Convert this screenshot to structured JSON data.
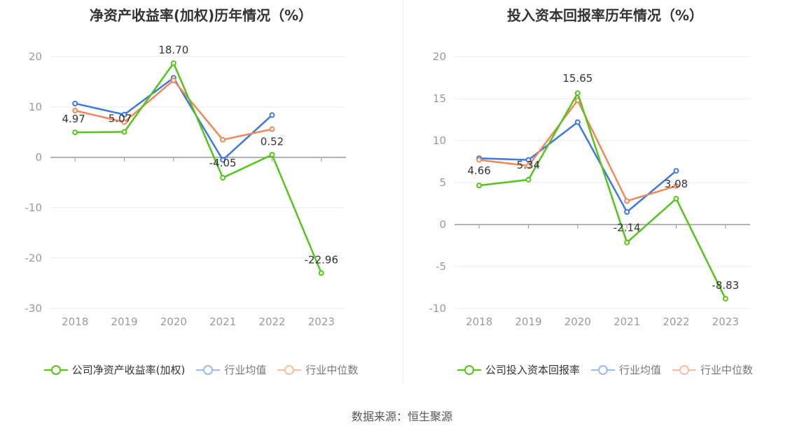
{
  "source": "数据来源：恒生聚源",
  "chart_data": [
    {
      "type": "line",
      "title": "净资产收益率(加权)历年情况（%）",
      "categories": [
        "2018",
        "2019",
        "2020",
        "2021",
        "2022",
        "2023"
      ],
      "ylim": [
        -30,
        20
      ],
      "yticks": [
        20,
        10,
        0,
        -10,
        -20,
        -30
      ],
      "ytick_labels": [
        "20",
        "10",
        "0",
        "-10",
        "-20",
        "-30"
      ],
      "grid": true,
      "legend_position": "bottom",
      "series": [
        {
          "name": "公司净资产收益率(加权)",
          "color": "#52c41a",
          "values": [
            4.97,
            5.07,
            18.7,
            -4.05,
            0.52,
            -22.96
          ],
          "labels": [
            "4.97",
            "5.07",
            "18.70",
            "-4.05",
            "0.52",
            "-22.96"
          ]
        },
        {
          "name": "行业均值",
          "color": "#3e77e0",
          "values": [
            10.7,
            8.5,
            15.8,
            -0.5,
            8.4,
            null
          ]
        },
        {
          "name": "行业中位数",
          "color": "#f0875a",
          "values": [
            9.3,
            7.0,
            15.3,
            3.5,
            5.6,
            null
          ]
        }
      ]
    },
    {
      "type": "line",
      "title": "投入资本回报率历年情况（%）",
      "categories": [
        "2018",
        "2019",
        "2020",
        "2021",
        "2022",
        "2023"
      ],
      "ylim": [
        -10,
        20
      ],
      "yticks": [
        20,
        15,
        10,
        5,
        0,
        -5,
        -10
      ],
      "ytick_labels": [
        "20",
        "15",
        "10",
        "5",
        "0",
        "-5",
        "-10"
      ],
      "grid": true,
      "legend_position": "bottom",
      "series": [
        {
          "name": "公司投入资本回报率",
          "color": "#52c41a",
          "values": [
            4.66,
            5.34,
            15.65,
            -2.14,
            3.08,
            -8.83
          ],
          "labels": [
            "4.66",
            "5.34",
            "15.65",
            "-2.14",
            "3.08",
            "-8.83"
          ]
        },
        {
          "name": "行业均值",
          "color": "#3e77e0",
          "values": [
            7.9,
            7.7,
            12.2,
            1.5,
            6.4,
            null
          ]
        },
        {
          "name": "行业中位数",
          "color": "#f0875a",
          "values": [
            7.7,
            7.0,
            14.8,
            2.8,
            4.6,
            null
          ]
        }
      ]
    }
  ]
}
